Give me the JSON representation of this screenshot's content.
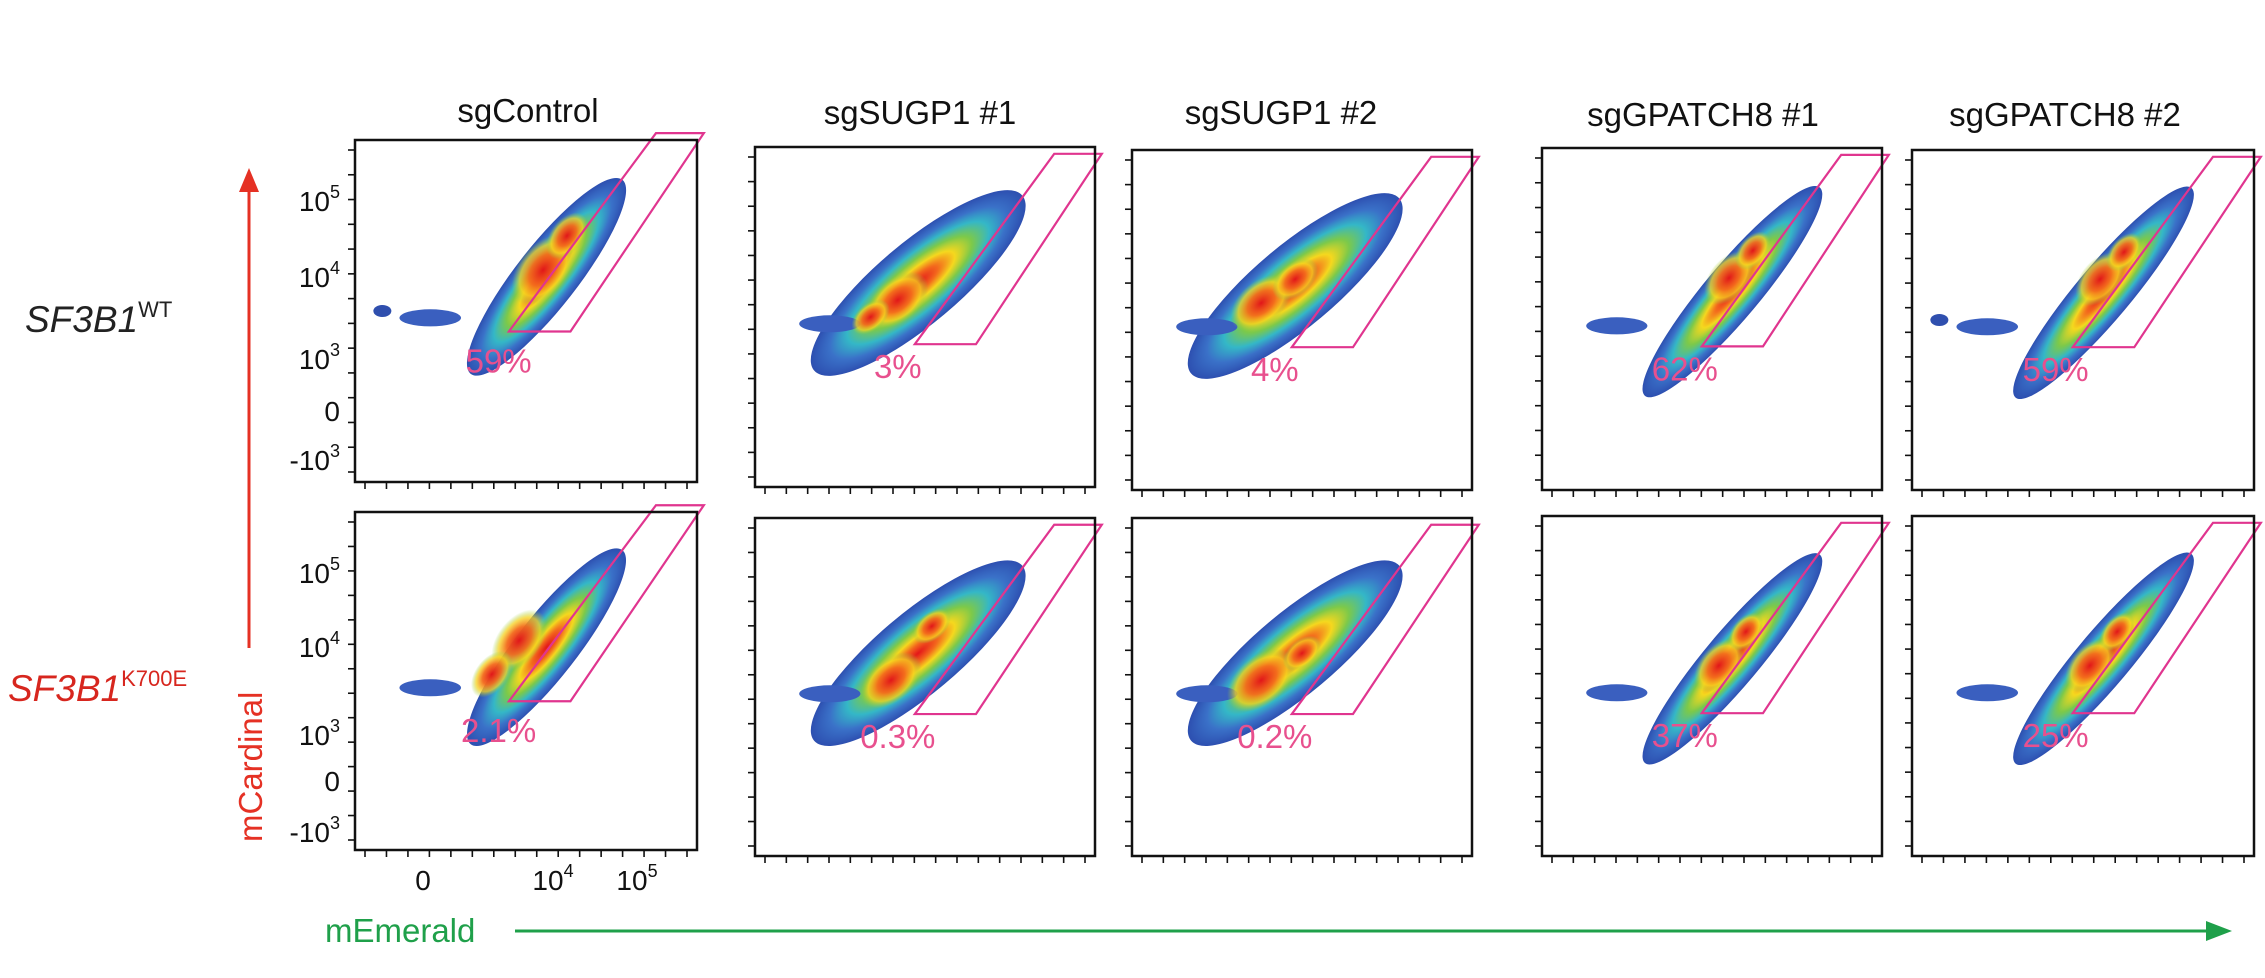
{
  "figure": {
    "columns": [
      "sgControl",
      "sgSUGP1 #1",
      "sgSUGP1 #2",
      "sgGPATCH8 #1",
      "sgGPATCH8 #2"
    ],
    "rows": [
      {
        "base": "SF3B1",
        "sup": "WT",
        "color": "#222222"
      },
      {
        "base": "SF3B1",
        "sup": "K700E",
        "color": "#d7261e"
      }
    ],
    "y_axis": {
      "label": "mCardinal",
      "color": "#e53124",
      "ticks": [
        "10^5",
        "10^4",
        "10^3",
        "0",
        "-10^3"
      ]
    },
    "x_axis": {
      "label": "mEmerald",
      "color": "#1fa04a",
      "ticks": [
        "0",
        "10^4",
        "10^5"
      ]
    },
    "gate_color": "#e0358f",
    "percent_color": "#e8508e"
  },
  "chart_data": {
    "type": "heatmap",
    "subtype": "flow cytometry density plots (5 columns x 2 rows)",
    "xlabel": "mEmerald",
    "ylabel": "mCardinal",
    "scale": "biexponential (log above 10^3)",
    "y_ticks": [
      "-10^3",
      "0",
      "10^3",
      "10^4",
      "10^5"
    ],
    "x_ticks": [
      "0",
      "10^4",
      "10^5"
    ],
    "gate_percentages": [
      {
        "row": "SF3B1 WT",
        "values": [
          "59%",
          "3%",
          "4%",
          "62%",
          "59%"
        ]
      },
      {
        "row": "SF3B1 K700E",
        "values": [
          "2.1%",
          "0.3%",
          "0.2%",
          "37%",
          "25%"
        ]
      }
    ]
  }
}
